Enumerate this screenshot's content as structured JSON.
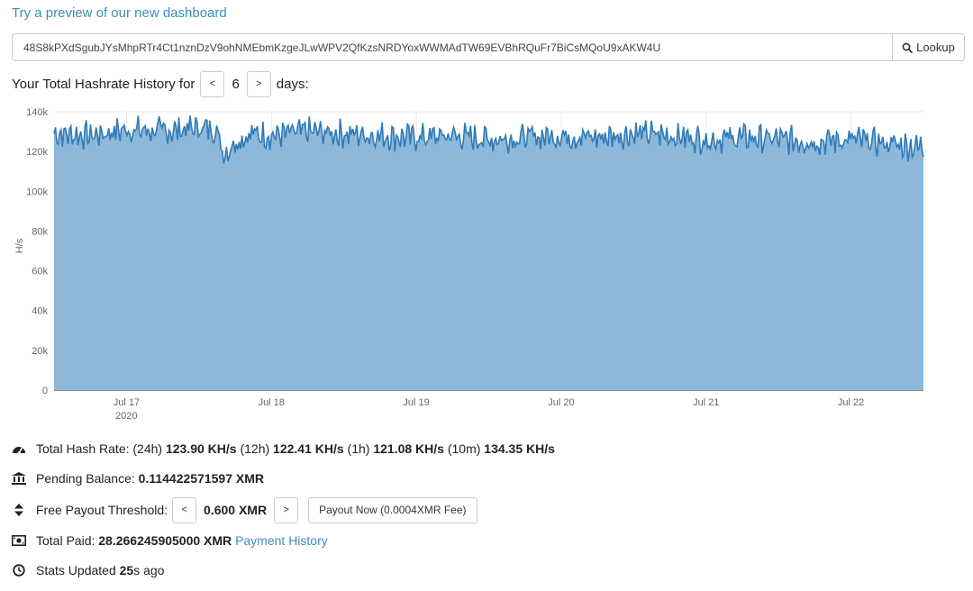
{
  "preview_link": "Try a preview of our new dashboard",
  "lookup": {
    "address": "48S8kPXdSgubJYsMhpRTr4Ct1nznDzV9ohNMEbmKzgeJLwWPV2QfKzsNRDYoxWWMAdTW69EVBhRQuFr7BiCsMQoU9xAKW4U",
    "button_label": "Lookup",
    "button_icon": "search-icon"
  },
  "history": {
    "label": "Your Total Hashrate History for",
    "prev": "<",
    "days": "6",
    "next": ">",
    "suffix": "days:"
  },
  "chart_data": {
    "type": "area",
    "ylabel": "H/s",
    "ylim": [
      0,
      140000
    ],
    "yticks": [
      "0",
      "20k",
      "40k",
      "60k",
      "80k",
      "100k",
      "120k",
      "140k"
    ],
    "xticks": [
      {
        "label": "Jul 17",
        "sub": "2020"
      },
      {
        "label": "Jul 18",
        "sub": ""
      },
      {
        "label": "Jul 19",
        "sub": ""
      },
      {
        "label": "Jul 20",
        "sub": ""
      },
      {
        "label": "Jul 21",
        "sub": ""
      },
      {
        "label": "Jul 22",
        "sub": ""
      }
    ],
    "x_start": "2020-07-16T12:00",
    "x_end": "2020-07-22T12:00",
    "color": "#2f7ab8",
    "fill": "#8db8d9",
    "series": [
      {
        "x": [
          "2020-07-16T12:00",
          "2020-07-16T18:00",
          "2020-07-17T00:00",
          "2020-07-17T06:00",
          "2020-07-17T12:00",
          "2020-07-17T15:00",
          "2020-07-17T16:00",
          "2020-07-17T18:00",
          "2020-07-17T21:00",
          "2020-07-18T00:00",
          "2020-07-18T06:00",
          "2020-07-18T12:00",
          "2020-07-18T18:00",
          "2020-07-19T00:00",
          "2020-07-19T06:00",
          "2020-07-19T12:00",
          "2020-07-19T18:00",
          "2020-07-20T00:00",
          "2020-07-20T06:00",
          "2020-07-20T12:00",
          "2020-07-20T18:00",
          "2020-07-21T00:00",
          "2020-07-21T06:00",
          "2020-07-21T12:00",
          "2020-07-21T18:00",
          "2020-07-22T00:00",
          "2020-07-22T06:00",
          "2020-07-22T12:00"
        ],
        "values": [
          129000,
          128000,
          131000,
          130000,
          132000,
          131000,
          118000,
          125000,
          129000,
          128000,
          130000,
          129000,
          128000,
          127000,
          128000,
          126000,
          127000,
          128000,
          127000,
          129000,
          128000,
          126000,
          127000,
          126000,
          125000,
          126000,
          124000,
          122000
        ]
      }
    ]
  },
  "stats": {
    "hash": {
      "label": "Total Hash Rate:",
      "p24": "(24h)",
      "v24": "123.90 KH/s",
      "p12": "(12h)",
      "v12": "122.41 KH/s",
      "p1": "(1h)",
      "v1": "121.08 KH/s",
      "p10": "(10m)",
      "v10": "134.35 KH/s"
    },
    "balance": {
      "label": "Pending Balance:",
      "value": "0.114422571597 XMR"
    },
    "payout": {
      "label": "Free Payout Threshold:",
      "prev": "<",
      "value": "0.600 XMR",
      "next": ">",
      "button": "Payout Now (0.0004XMR Fee)"
    },
    "paid": {
      "label": "Total Paid:",
      "value": "28.266245905000 XMR",
      "link": "Payment History"
    },
    "updated": {
      "label": "Stats Updated",
      "value": "25",
      "suffix": "s ago"
    }
  }
}
